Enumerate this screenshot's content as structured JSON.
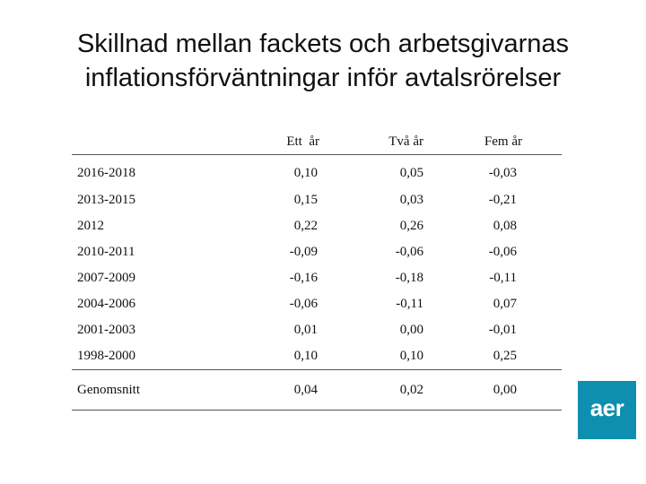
{
  "title": {
    "line1": "Skillnad mellan fackets och arbetsgivarnas",
    "line2": "inflationsförväntningar inför avtalsrörelser"
  },
  "table": {
    "headers": [
      "",
      "Ett  år",
      "Två år",
      "Fem år"
    ],
    "rows": [
      {
        "label": "2016-2018",
        "values": [
          "0,10",
          "0,05",
          "-0,03"
        ]
      },
      {
        "label": "2013-2015",
        "values": [
          "0,15",
          "0,03",
          "-0,21"
        ]
      },
      {
        "label": "2012",
        "values": [
          "0,22",
          "0,26",
          "0,08"
        ]
      },
      {
        "label": "2010-2011",
        "values": [
          "-0,09",
          "-0,06",
          "-0,06"
        ]
      },
      {
        "label": "2007-2009",
        "values": [
          "-0,16",
          "-0,18",
          "-0,11"
        ]
      },
      {
        "label": "2004-2006",
        "values": [
          "-0,06",
          "-0,11",
          "0,07"
        ]
      },
      {
        "label": "2001-2003",
        "values": [
          "0,01",
          "0,00",
          "-0,01"
        ]
      },
      {
        "label": "1998-2000",
        "values": [
          "0,10",
          "0,10",
          "0,25"
        ]
      }
    ],
    "footer": {
      "label": "Genomsnitt",
      "values": [
        "0,04",
        "0,02",
        "0,00"
      ]
    }
  },
  "logo": {
    "text": "aer",
    "color": "#0f8fb0"
  }
}
